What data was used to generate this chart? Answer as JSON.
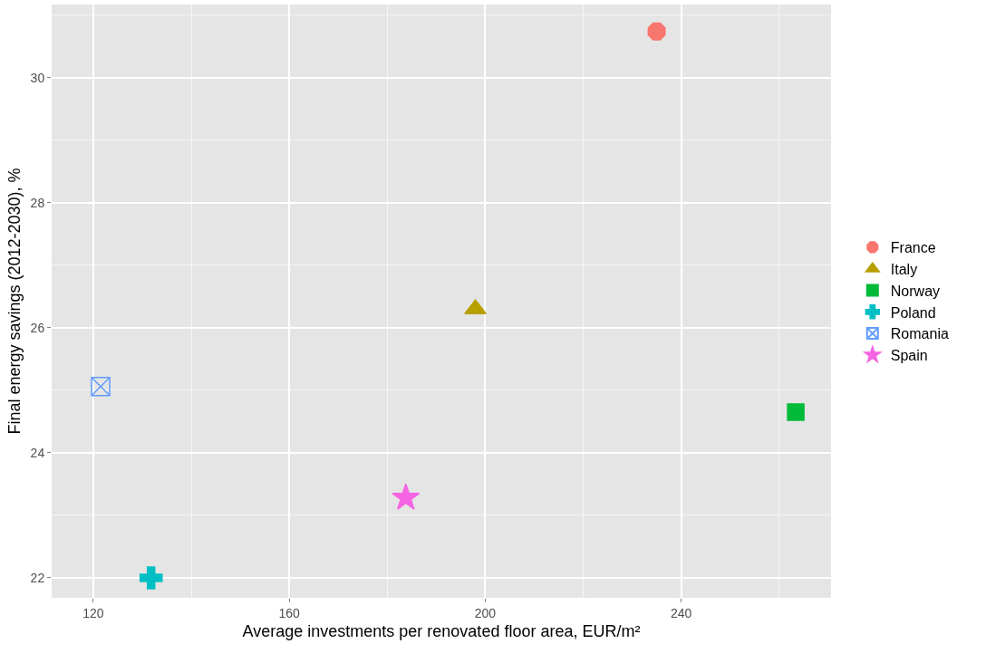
{
  "chart_data": {
    "type": "scatter",
    "xlabel": "Average investments per renovated floor area, EUR/m²",
    "ylabel": "Final energy savings (2012-2030), %",
    "xlim": [
      111.5,
      270.6
    ],
    "xticks": [
      120,
      160,
      200,
      240
    ],
    "ylim": [
      21.68,
      31.17
    ],
    "yticks": [
      22,
      24,
      26,
      28,
      30
    ],
    "grid": true,
    "legend": "right",
    "series": [
      {
        "name": "France",
        "color": "#f8766d",
        "marker": "circle",
        "x": [
          235
        ],
        "values": [
          30.74
        ]
      },
      {
        "name": "Italy",
        "color": "#b79f00",
        "marker": "triangle",
        "x": [
          198
        ],
        "values": [
          26.3
        ]
      },
      {
        "name": "Norway",
        "color": "#00ba38",
        "marker": "square",
        "x": [
          263.4
        ],
        "values": [
          24.65
        ]
      },
      {
        "name": "Poland",
        "color": "#00bfc4",
        "marker": "cross",
        "x": [
          131.8
        ],
        "values": [
          22
        ]
      },
      {
        "name": "Romania",
        "color": "#619cff",
        "marker": "cross",
        "x": [
          121.5
        ],
        "values": [
          25.06
        ]
      },
      {
        "name": "Spain",
        "color": "#f564e3",
        "marker": "star",
        "x": [
          183.8
        ],
        "values": [
          23.28
        ]
      }
    ]
  }
}
